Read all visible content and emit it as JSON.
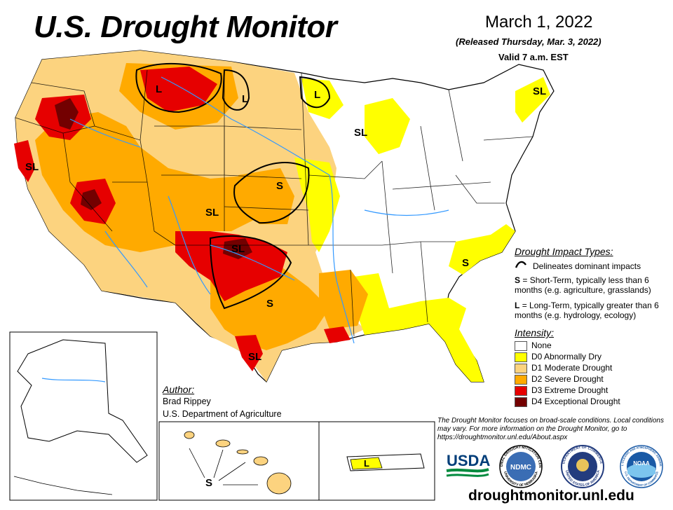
{
  "header": {
    "title": "U.S. Drought Monitor",
    "date": "March 1, 2022",
    "released": "(Released Thursday, Mar. 3, 2022)",
    "valid": "Valid 7 a.m. EST"
  },
  "map_labels": {
    "conus": [
      "SL",
      "L",
      "L",
      "L",
      "SL",
      "SL",
      "SL",
      "S",
      "SL",
      "S",
      "S",
      "SL"
    ],
    "hawaii": "S",
    "puerto_rico": "L"
  },
  "impact_types": {
    "title": "Drought Impact Types:",
    "line_label": "Delineates dominant impacts",
    "short_term_letter": "S",
    "short_term_text": "= Short-Term, typically less than 6 months (e.g. agriculture, grasslands)",
    "long_term_letter": "L",
    "long_term_text": "= Long-Term, typically greater than 6 months (e.g. hydrology, ecology)"
  },
  "intensity": {
    "title": "Intensity:",
    "items": [
      {
        "label": "None",
        "color": "#ffffff"
      },
      {
        "label": "D0 Abnormally Dry",
        "color": "#ffff00"
      },
      {
        "label": "D1 Moderate Drought",
        "color": "#fcd37f"
      },
      {
        "label": "D2 Severe Drought",
        "color": "#ffaa00"
      },
      {
        "label": "D3 Extreme Drought",
        "color": "#e60000"
      },
      {
        "label": "D4 Exceptional Drought",
        "color": "#730000"
      }
    ]
  },
  "author": {
    "title": "Author:",
    "name": "Brad Rippey",
    "org": "U.S. Department of Agriculture"
  },
  "disclaimer": "The Drought Monitor focuses on broad-scale conditions. Local conditions may vary. For more information on the Drought Monitor, go to https://droughtmonitor.unl.edu/About.aspx",
  "logos": {
    "usda": "USDA",
    "ndmc": "NDMC",
    "noaa": "NOAA",
    "ndmc_ring": "NATIONAL DROUGHT MITIGATION CENTER",
    "ndmc_ring_bottom": "UNIVERSITY OF NEBRASKA",
    "commerce_ring": "DEPARTMENT OF COMMERCE",
    "commerce_ring_bottom": "UNITED STATES OF AMERICA",
    "noaa_ring": "NATIONAL OCEANIC AND ATMOSPHERIC ADMINISTRATION",
    "noaa_ring_bottom": "U.S. DEPARTMENT OF COMMERCE"
  },
  "website": "droughtmonitor.unl.edu"
}
